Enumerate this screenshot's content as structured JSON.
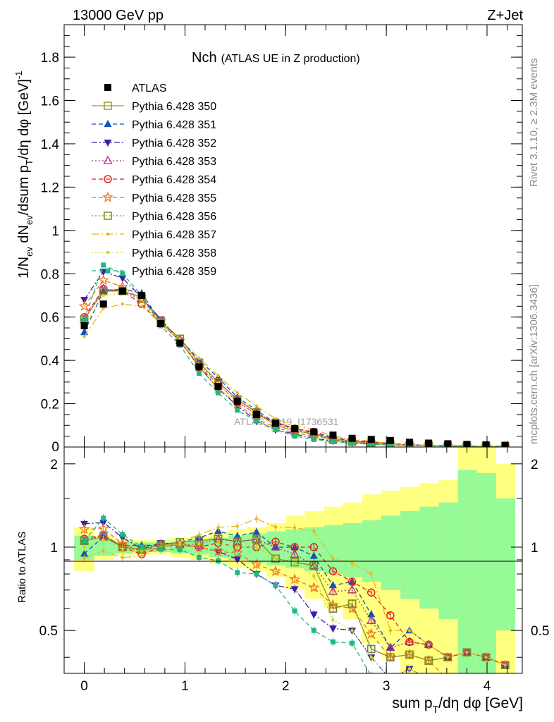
{
  "header": {
    "left": "13000 GeV pp",
    "right": "Z+Jet"
  },
  "title": {
    "main": "Nch",
    "sub": "(ATLAS UE in Z production)"
  },
  "side_text": {
    "rivet": "Rivet 3.1.10, ≥ 2.3M events",
    "mcplots": "mcplots.cern.ch [arXiv:1306.3436]"
  },
  "watermark": "ATLAS_2019_I1736531",
  "chart_data": {
    "type": "line",
    "title": "Nch (ATLAS UE in Z production)",
    "xlabel": "sum p_T/dη dφ [GeV]",
    "ylabel": "1/N_ev dN_ev/dsum p_T/dη dφ [GeV]^-1",
    "ratio_ylabel": "Ratio to ATLAS",
    "xlim": [
      -0.2,
      4.35
    ],
    "ylim": [
      0,
      1.95
    ],
    "ratio_ylim": [
      0.35,
      2.3
    ],
    "x_ticks": [
      0,
      1,
      2,
      3,
      4
    ],
    "y_ticks": [
      0.2,
      0.4,
      0.6,
      0.8,
      1,
      1.2,
      1.4,
      1.6,
      1.8
    ],
    "ratio_ticks": [
      0.5,
      1,
      2
    ],
    "legend_position": "top-left",
    "x": [
      0,
      0.19,
      0.38,
      0.57,
      0.76,
      0.95,
      1.14,
      1.33,
      1.52,
      1.71,
      1.9,
      2.09,
      2.28,
      2.47,
      2.66,
      2.85,
      3.04,
      3.23,
      3.42,
      3.61,
      3.8,
      3.99,
      4.18
    ],
    "data": {
      "name": "ATLAS",
      "values": [
        0.56,
        0.66,
        0.72,
        0.7,
        0.57,
        0.48,
        0.37,
        0.28,
        0.21,
        0.15,
        0.11,
        0.085,
        0.07,
        0.055,
        0.04,
        0.035,
        0.03,
        0.022,
        0.018,
        0.015,
        0.012,
        0.01,
        0.008
      ]
    },
    "series": [
      {
        "name": "Pythia 6.428 350",
        "color": "#999933",
        "marker": "square-open",
        "dash": "",
        "values": [
          0.59,
          0.72,
          0.72,
          0.69,
          0.58,
          0.5,
          0.39,
          0.3,
          0.22,
          0.16,
          0.1,
          0.075,
          0.06,
          0.033,
          0.025,
          0.015,
          0.012,
          0.009,
          0.007,
          0.006,
          0.005,
          0.004,
          0.003
        ]
      },
      {
        "name": "Pythia 6.428 351",
        "color": "#1450B8",
        "marker": "triangle-up",
        "dash": "6,4",
        "values": [
          0.53,
          0.72,
          0.73,
          0.71,
          0.58,
          0.5,
          0.4,
          0.32,
          0.23,
          0.17,
          0.11,
          0.085,
          0.065,
          0.04,
          0.03,
          0.02,
          0.013,
          0.011,
          0.008,
          0.006,
          0.005,
          0.004,
          0.003
        ]
      },
      {
        "name": "Pythia 6.428 352",
        "color": "#3A1FA8",
        "marker": "triangle-down",
        "dash": "8,3,2,3",
        "values": [
          0.68,
          0.81,
          0.78,
          0.69,
          0.59,
          0.49,
          0.37,
          0.27,
          0.19,
          0.12,
          0.08,
          0.06,
          0.04,
          0.028,
          0.02,
          0.014,
          0.01,
          0.008,
          0.006,
          0.005,
          0.004,
          0.003,
          0.002
        ]
      },
      {
        "name": "Pythia 6.428 353",
        "color": "#B03080",
        "marker": "triangle-open",
        "dash": "2,3",
        "values": [
          0.59,
          0.73,
          0.72,
          0.68,
          0.57,
          0.49,
          0.38,
          0.3,
          0.22,
          0.16,
          0.11,
          0.08,
          0.06,
          0.038,
          0.028,
          0.019,
          0.013,
          0.01,
          0.008,
          0.006,
          0.005,
          0.004,
          0.003
        ]
      },
      {
        "name": "Pythia 6.428 354",
        "color": "#DD2020",
        "marker": "circle-open",
        "dash": "6,4",
        "values": [
          0.6,
          0.73,
          0.72,
          0.66,
          0.57,
          0.49,
          0.37,
          0.29,
          0.21,
          0.15,
          0.115,
          0.085,
          0.07,
          0.045,
          0.03,
          0.024,
          0.017,
          0.01,
          0.008,
          0.006,
          0.005,
          0.004,
          0.003
        ]
      },
      {
        "name": "Pythia 6.428 355",
        "color": "#F07820",
        "marker": "star-open",
        "dash": "6,4",
        "values": [
          0.65,
          0.77,
          0.74,
          0.68,
          0.58,
          0.49,
          0.37,
          0.27,
          0.2,
          0.13,
          0.09,
          0.065,
          0.05,
          0.034,
          0.024,
          0.017,
          0.012,
          0.009,
          0.007,
          0.005,
          0.004,
          0.003,
          0.002
        ]
      },
      {
        "name": "Pythia 6.428 356",
        "color": "#7A8A20",
        "marker": "square-open",
        "dash": "2,3",
        "values": [
          0.59,
          0.72,
          0.72,
          0.69,
          0.58,
          0.5,
          0.39,
          0.3,
          0.22,
          0.16,
          0.1,
          0.075,
          0.06,
          0.033,
          0.025,
          0.015,
          0.012,
          0.009,
          0.007,
          0.006,
          0.005,
          0.004,
          0.003
        ]
      },
      {
        "name": "Pythia 6.428 357",
        "color": "#E8B820",
        "marker": "dot",
        "dash": "10,4,2,4",
        "values": [
          0.51,
          0.64,
          0.66,
          0.65,
          0.57,
          0.5,
          0.41,
          0.33,
          0.25,
          0.19,
          0.13,
          0.1,
          0.08,
          0.05,
          0.035,
          0.028,
          0.015,
          0.011,
          0.008,
          0.006,
          0.005,
          0.004,
          0.003
        ]
      },
      {
        "name": "Pythia 6.428 358",
        "color": "#C8D820",
        "marker": "dot",
        "dash": "2,3",
        "values": [
          0.56,
          0.7,
          0.71,
          0.68,
          0.57,
          0.49,
          0.38,
          0.29,
          0.21,
          0.15,
          0.1,
          0.075,
          0.055,
          0.03,
          0.02,
          0.014,
          0.01,
          0.008,
          0.006,
          0.005,
          0.004,
          0.003,
          0.002
        ]
      },
      {
        "name": "Pythia 6.428 359",
        "color": "#20B880",
        "marker": "dot-filled",
        "dash": "6,4",
        "values": [
          0.59,
          0.84,
          0.8,
          0.7,
          0.56,
          0.47,
          0.34,
          0.25,
          0.17,
          0.12,
          0.08,
          0.05,
          0.035,
          0.025,
          0.018,
          0.012,
          0.009,
          0.007,
          0.005,
          0.004,
          0.003,
          0.002,
          0.002
        ]
      }
    ],
    "ratio_bands": {
      "bin_edges": [
        -0.1,
        0.1,
        0.29,
        0.48,
        0.67,
        0.86,
        1.05,
        1.24,
        1.43,
        1.62,
        1.81,
        2.0,
        2.19,
        2.38,
        2.57,
        2.76,
        2.95,
        3.14,
        3.33,
        3.52,
        3.71,
        3.9,
        4.09,
        4.28
      ],
      "stat_halfwidth": [
        0.1,
        0.07,
        0.05,
        0.04,
        0.04,
        0.05,
        0.06,
        0.08,
        0.1,
        0.12,
        0.14,
        0.16,
        0.18,
        0.2,
        0.22,
        0.25,
        0.3,
        0.35,
        0.4,
        0.45,
        0.9,
        0.85,
        0.5
      ],
      "total_halfwidth": [
        0.18,
        0.1,
        0.07,
        0.06,
        0.06,
        0.08,
        0.1,
        0.13,
        0.16,
        0.18,
        0.22,
        0.3,
        0.35,
        0.4,
        0.45,
        0.55,
        0.6,
        0.65,
        0.7,
        0.75,
        1.5,
        1.35,
        1.0
      ]
    }
  }
}
